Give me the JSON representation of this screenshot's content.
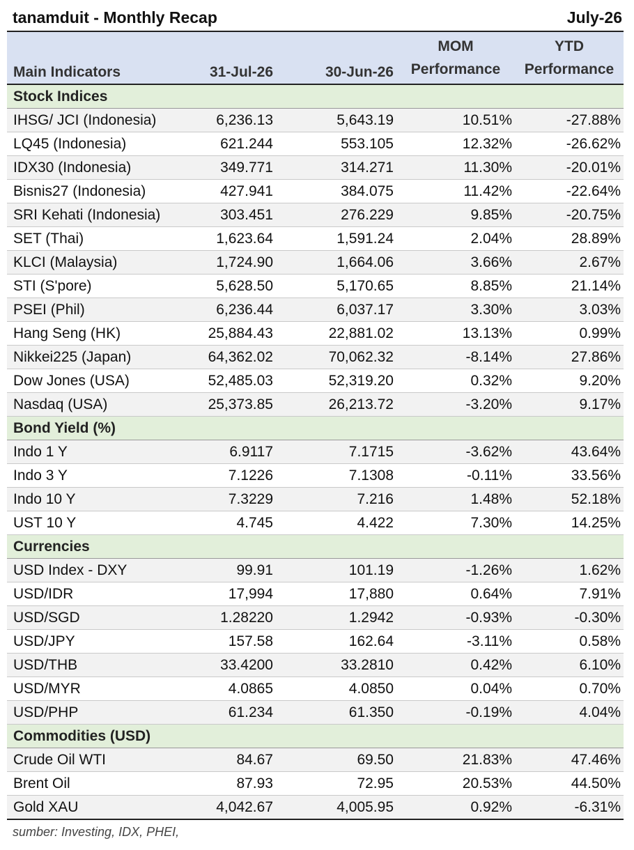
{
  "header": {
    "title": "tanamduit - Monthly Recap",
    "period": "July-26"
  },
  "columns": {
    "indicator": "Main Indicators",
    "current": "31-Jul-26",
    "previous": "30-Jun-26",
    "mom_line1": "MOM",
    "mom_line2": "Performance",
    "ytd_line1": "YTD",
    "ytd_line2": "Performance"
  },
  "sections": [
    {
      "title": "Stock Indices",
      "rows": [
        [
          "IHSG/ JCI (Indonesia)",
          "6,236.13",
          "5,643.19",
          "10.51%",
          "-27.88%"
        ],
        [
          "LQ45 (Indonesia)",
          "621.244",
          "553.105",
          "12.32%",
          "-26.62%"
        ],
        [
          "IDX30 (Indonesia)",
          "349.771",
          "314.271",
          "11.30%",
          "-20.01%"
        ],
        [
          "Bisnis27 (Indonesia)",
          "427.941",
          "384.075",
          "11.42%",
          "-22.64%"
        ],
        [
          "SRI Kehati (Indonesia)",
          "303.451",
          "276.229",
          "9.85%",
          "-20.75%"
        ],
        [
          "SET (Thai)",
          "1,623.64",
          "1,591.24",
          "2.04%",
          "28.89%"
        ],
        [
          "KLCI (Malaysia)",
          "1,724.90",
          "1,664.06",
          "3.66%",
          "2.67%"
        ],
        [
          "STI (S'pore)",
          "5,628.50",
          "5,170.65",
          "8.85%",
          "21.14%"
        ],
        [
          "PSEI (Phil)",
          "6,236.44",
          "6,037.17",
          "3.30%",
          "3.03%"
        ],
        [
          "Hang Seng (HK)",
          "25,884.43",
          "22,881.02",
          "13.13%",
          "0.99%"
        ],
        [
          "Nikkei225 (Japan)",
          "64,362.02",
          "70,062.32",
          "-8.14%",
          "27.86%"
        ],
        [
          "Dow Jones (USA)",
          "52,485.03",
          "52,319.20",
          "0.32%",
          "9.20%"
        ],
        [
          "Nasdaq (USA)",
          "25,373.85",
          "26,213.72",
          "-3.20%",
          "9.17%"
        ]
      ]
    },
    {
      "title": "Bond Yield (%)",
      "rows": [
        [
          "Indo 1 Y",
          "6.9117",
          "7.1715",
          "-3.62%",
          "43.64%"
        ],
        [
          "Indo 3 Y",
          "7.1226",
          "7.1308",
          "-0.11%",
          "33.56%"
        ],
        [
          "Indo 10 Y",
          "7.3229",
          "7.216",
          "1.48%",
          "52.18%"
        ],
        [
          "UST 10 Y",
          "4.745",
          "4.422",
          "7.30%",
          "14.25%"
        ]
      ]
    },
    {
      "title": "Currencies",
      "rows": [
        [
          "USD Index - DXY",
          "99.91",
          "101.19",
          "-1.26%",
          "1.62%"
        ],
        [
          "USD/IDR",
          "17,994",
          "17,880",
          "0.64%",
          "7.91%"
        ],
        [
          "USD/SGD",
          "1.28220",
          "1.2942",
          "-0.93%",
          "-0.30%"
        ],
        [
          "USD/JPY",
          "157.58",
          "162.64",
          "-3.11%",
          "0.58%"
        ],
        [
          "USD/THB",
          "33.4200",
          "33.2810",
          "0.42%",
          "6.10%"
        ],
        [
          "USD/MYR",
          "4.0865",
          "4.0850",
          "0.04%",
          "0.70%"
        ],
        [
          "USD/PHP",
          "61.234",
          "61.350",
          "-0.19%",
          "4.04%"
        ]
      ]
    },
    {
      "title": "Commodities (USD)",
      "rows": [
        [
          "Crude Oil WTI",
          "84.67",
          "69.50",
          "21.83%",
          "47.46%"
        ],
        [
          "Brent Oil",
          "87.93",
          "72.95",
          "20.53%",
          "44.50%"
        ],
        [
          "Gold XAU",
          "4,042.67",
          "4,005.95",
          "0.92%",
          "-6.31%"
        ]
      ]
    }
  ],
  "footer": {
    "source": "sumber: Investing, IDX, PHEI,"
  },
  "colors": {
    "header_bg": "#d9e1f2",
    "section_bg": "#e2efda",
    "alt_row_bg": "#f2f2f2"
  }
}
